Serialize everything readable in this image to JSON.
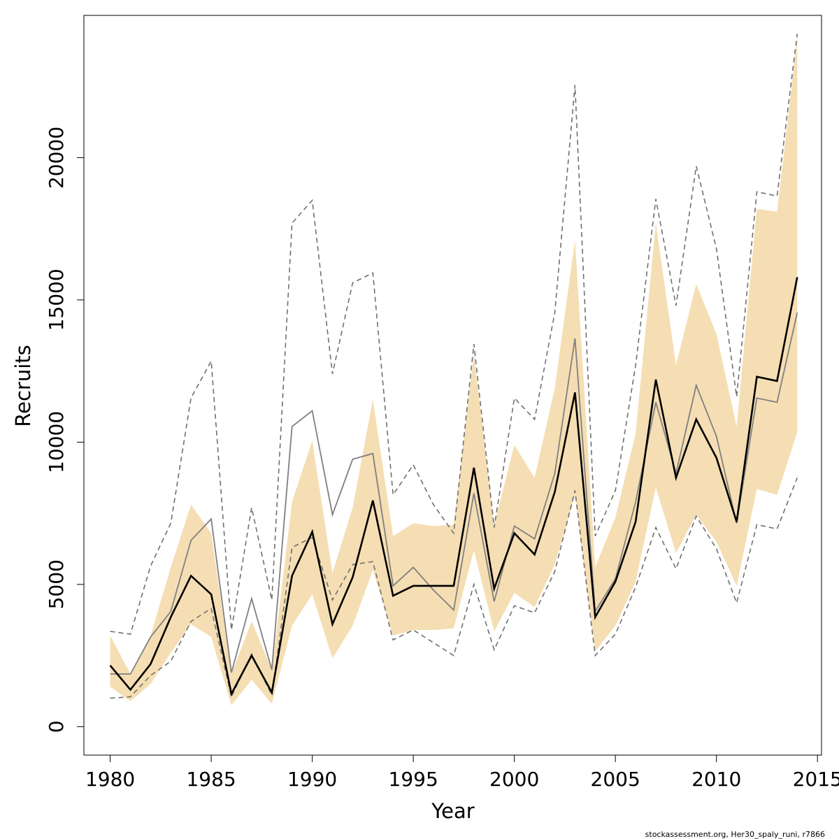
{
  "chart_data": {
    "type": "line",
    "xlabel": "Year",
    "ylabel": "Recruits",
    "footer": "stockassessment.org, Her30_spaly_runi, r7866",
    "xlim": [
      1978.7,
      2015.2
    ],
    "ylim": [
      -1000,
      25000
    ],
    "x_ticks": [
      1980,
      1985,
      1990,
      1995,
      2000,
      2005,
      2010,
      2015
    ],
    "y_ticks": [
      0,
      5000,
      10000,
      15000,
      20000
    ],
    "grid": false,
    "colors": {
      "band": "#f5deb3",
      "estimate": "#000000",
      "comparison": "#808080",
      "comparison_ci": "#707070"
    },
    "x": [
      1980,
      1981,
      1982,
      1983,
      1984,
      1985,
      1986,
      1987,
      1988,
      1989,
      1990,
      1991,
      1992,
      1993,
      1994,
      1995,
      1996,
      1997,
      1998,
      1999,
      2000,
      2001,
      2002,
      2003,
      2004,
      2005,
      2006,
      2007,
      2008,
      2009,
      2010,
      2011,
      2012,
      2013,
      2014
    ],
    "series": [
      {
        "role": "estimate",
        "values": [
          2150,
          1300,
          2200,
          3850,
          5300,
          4650,
          1150,
          2500,
          1200,
          5300,
          6850,
          3600,
          5250,
          7950,
          4600,
          4950,
          4950,
          4950,
          9100,
          4850,
          6800,
          6050,
          8250,
          11750,
          3850,
          5100,
          7200,
          12200,
          8750,
          10800,
          9450,
          7200,
          12300,
          12150,
          15800
        ]
      },
      {
        "role": "estimate_ci_upper",
        "values": [
          3200,
          1850,
          3200,
          5600,
          7800,
          6800,
          1850,
          3700,
          2000,
          7900,
          10050,
          5400,
          7700,
          11500,
          6700,
          7150,
          7050,
          7100,
          13100,
          7100,
          9900,
          8750,
          11900,
          17100,
          5600,
          7350,
          10300,
          17700,
          12700,
          15550,
          13800,
          10550,
          18200,
          18100,
          24200
        ]
      },
      {
        "role": "estimate_ci_lower",
        "values": [
          1400,
          900,
          1500,
          2600,
          3600,
          3150,
          750,
          1650,
          800,
          3550,
          4650,
          2400,
          3550,
          5500,
          3200,
          3400,
          3400,
          3450,
          6200,
          3350,
          4700,
          4200,
          5700,
          8100,
          2650,
          3550,
          5100,
          8400,
          6100,
          7450,
          6500,
          4950,
          8350,
          8150,
          10350
        ]
      },
      {
        "role": "comparison",
        "values": [
          1850,
          1850,
          3150,
          4050,
          6550,
          7300,
          1900,
          4500,
          2000,
          10550,
          11100,
          7450,
          9400,
          9600,
          4950,
          5600,
          4800,
          4100,
          8200,
          4400,
          7050,
          6600,
          8900,
          13650,
          4050,
          5200,
          7900,
          11400,
          8900,
          12000,
          10200,
          7150,
          11550,
          11400,
          14550
        ]
      },
      {
        "role": "comparison_ci_upper",
        "values": [
          3350,
          3250,
          5650,
          7150,
          11550,
          12850,
          3400,
          7700,
          4450,
          17700,
          18500,
          12400,
          15600,
          15950,
          8150,
          9200,
          7800,
          6800,
          13450,
          7000,
          11550,
          10800,
          14550,
          22550,
          6700,
          8300,
          12700,
          18550,
          14800,
          19700,
          16800,
          11600,
          18800,
          18650,
          24350
        ]
      },
      {
        "role": "comparison_ci_lower",
        "values": [
          1000,
          1050,
          1800,
          2300,
          3700,
          4150,
          1050,
          2550,
          1100,
          6300,
          6650,
          4450,
          5700,
          5800,
          3050,
          3400,
          2950,
          2500,
          5000,
          2700,
          4250,
          4000,
          5450,
          8300,
          2500,
          3250,
          4900,
          7000,
          5550,
          7400,
          6250,
          4350,
          7100,
          6950,
          8750
        ]
      }
    ]
  }
}
